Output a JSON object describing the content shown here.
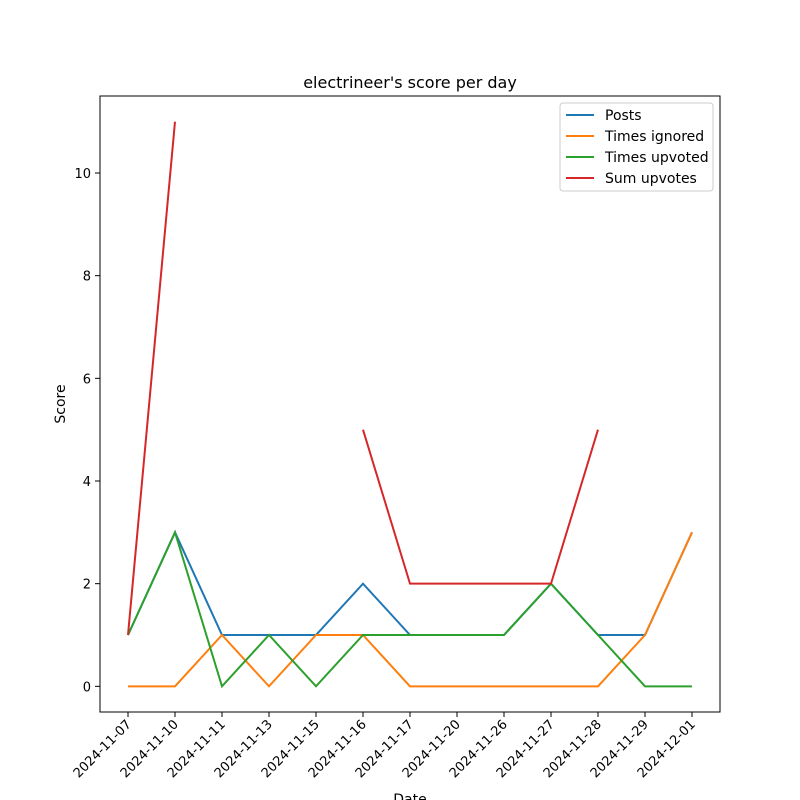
{
  "chart_data": {
    "type": "line",
    "title": "electrineer's score per day",
    "xlabel": "Date",
    "ylabel": "Score",
    "categories": [
      "2024-11-07",
      "2024-11-10",
      "2024-11-11",
      "2024-11-13",
      "2024-11-15",
      "2024-11-16",
      "2024-11-17",
      "2024-11-20",
      "2024-11-26",
      "2024-11-27",
      "2024-11-28",
      "2024-11-29",
      "2024-12-01"
    ],
    "ylim": [
      -0.5,
      11.5
    ],
    "yticks": [
      0,
      2,
      4,
      6,
      8,
      10
    ],
    "grid": false,
    "legend_position": "upper right",
    "series": [
      {
        "name": "Posts",
        "color": "#1f77b4",
        "values": [
          1,
          3,
          1,
          1,
          1,
          2,
          1,
          1,
          1,
          2,
          1,
          1,
          3
        ]
      },
      {
        "name": "Times ignored",
        "color": "#ff7f0e",
        "values": [
          0,
          0,
          1,
          0,
          1,
          1,
          0,
          0,
          0,
          0,
          0,
          1,
          3
        ]
      },
      {
        "name": "Times upvoted",
        "color": "#2ca02c",
        "values": [
          1,
          3,
          0,
          1,
          0,
          1,
          1,
          1,
          1,
          2,
          1,
          0,
          0
        ]
      },
      {
        "name": "Sum upvotes",
        "color": "#d62728",
        "values": [
          1,
          11,
          null,
          null,
          null,
          5,
          2,
          2,
          2,
          2,
          5,
          null,
          null
        ]
      }
    ]
  }
}
